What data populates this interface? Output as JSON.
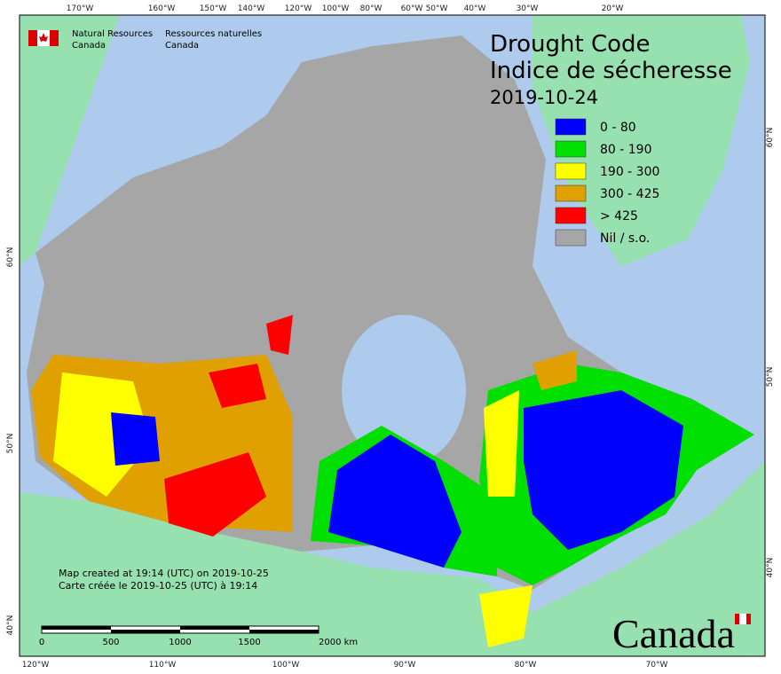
{
  "header": {
    "org_en": [
      "Natural Resources",
      "Canada"
    ],
    "org_fr": [
      "Ressources naturelles",
      "Canada"
    ]
  },
  "title": [
    "Drought Code",
    "Indice de sécheresse"
  ],
  "date": "2019-10-24",
  "legend": [
    {
      "label": "0 - 80",
      "color": "#0000ff"
    },
    {
      "label": "80 - 190",
      "color": "#00e000"
    },
    {
      "label": "190 - 300",
      "color": "#ffff00"
    },
    {
      "label": "300 - 425",
      "color": "#e0a000"
    },
    {
      "label": "> 425",
      "color": "#ff0000"
    },
    {
      "label": "Nil / s.o.",
      "color": "#a6a6a6"
    }
  ],
  "graticule": {
    "top": [
      "170°W",
      "160°W",
      "150°W",
      "140°W",
      "120°W",
      "100°W",
      "80°W",
      "60°W",
      "50°W",
      "40°W",
      "30°W",
      "20°W"
    ],
    "bottom": [
      "120°W",
      "110°W",
      "100°W",
      "90°W",
      "80°W",
      "70°W"
    ],
    "left": [
      "60°N",
      "50°N",
      "40°N"
    ],
    "right": [
      "60°N",
      "50°N",
      "40°N"
    ]
  },
  "scale_bar": [
    "0",
    "500",
    "1000",
    "1500",
    "2000  km"
  ],
  "credits": [
    "Map created at 19:14 (UTC) on 2019-10-25",
    "Carte créée le 2019-10-25 (UTC) à 19:14"
  ],
  "wordmark": "Canada"
}
